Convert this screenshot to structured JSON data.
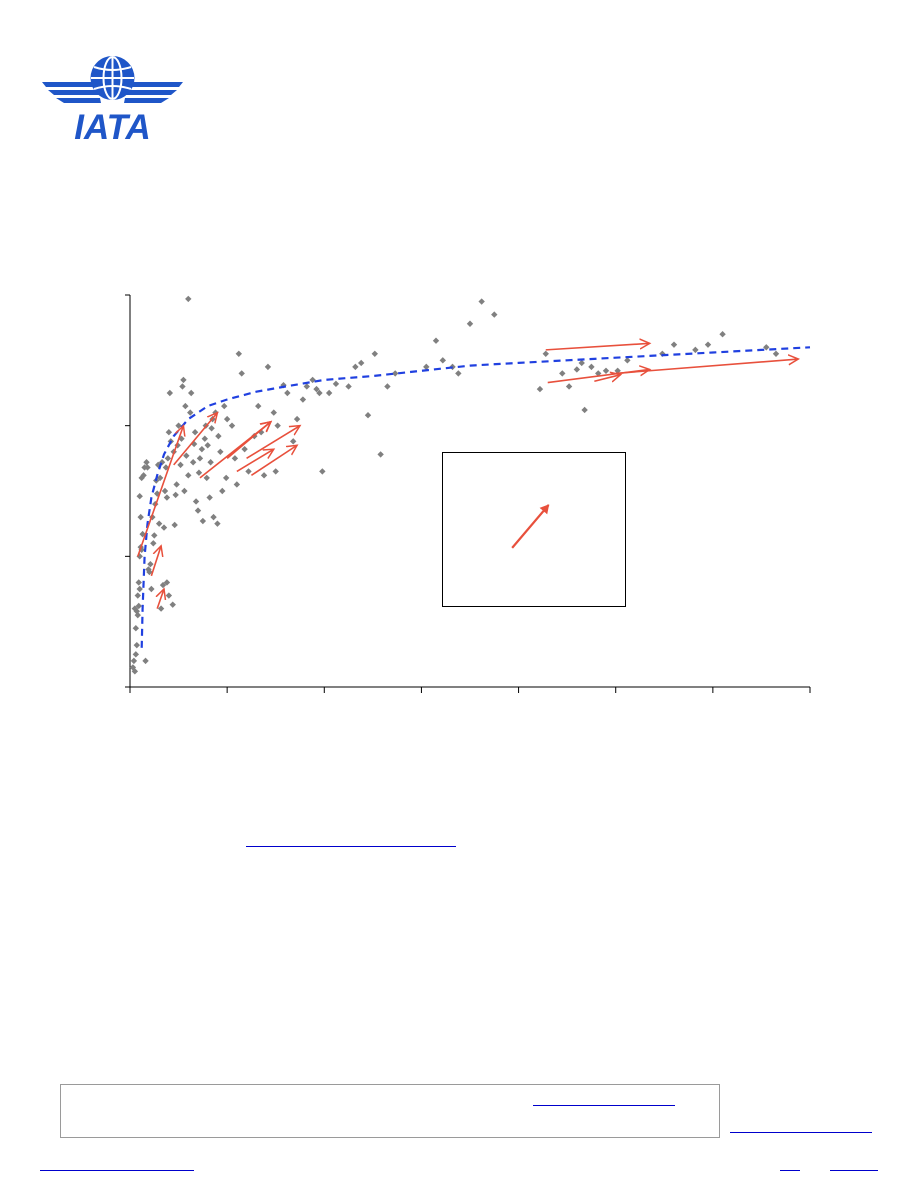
{
  "brand": {
    "logo_text": "IATA",
    "logo_color": "#1f56c8"
  },
  "colors": {
    "scatter": "#808080",
    "trend": "#2040e0",
    "arrow": "#e8503c",
    "axis": "#000000",
    "link": "#0000cc"
  },
  "chart_data": {
    "type": "scatter",
    "title": "",
    "xlabel": "",
    "ylabel": "",
    "xlim": [
      0,
      7
    ],
    "ylim": [
      0,
      3
    ],
    "grid": false,
    "legend": "none",
    "x_ticks": [
      0,
      1,
      2,
      3,
      4,
      5,
      6,
      7
    ],
    "y_ticks": [
      0,
      1,
      2,
      3
    ],
    "series": [
      {
        "kind": "points",
        "points": [
          [
            0.03,
            0.15
          ],
          [
            0.04,
            0.2
          ],
          [
            0.05,
            0.12
          ],
          [
            0.06,
            0.25
          ],
          [
            0.07,
            0.32
          ],
          [
            0.06,
            0.45
          ],
          [
            0.08,
            0.55
          ],
          [
            0.05,
            0.6
          ],
          [
            0.07,
            0.58
          ],
          [
            0.09,
            0.62
          ],
          [
            0.08,
            0.7
          ],
          [
            0.1,
            0.75
          ],
          [
            0.09,
            0.8
          ],
          [
            0.1,
            1.0
          ],
          [
            0.11,
            1.07
          ],
          [
            0.12,
            1.05
          ],
          [
            0.13,
            1.17
          ],
          [
            0.11,
            1.3
          ],
          [
            0.1,
            1.46
          ],
          [
            0.12,
            1.6
          ],
          [
            0.14,
            1.62
          ],
          [
            0.15,
            1.68
          ],
          [
            0.17,
            1.72
          ],
          [
            0.18,
            1.68
          ],
          [
            0.16,
            0.2
          ],
          [
            0.19,
            0.9
          ],
          [
            0.2,
            0.88
          ],
          [
            0.21,
            0.94
          ],
          [
            0.22,
            0.75
          ],
          [
            0.24,
            1.1
          ],
          [
            0.25,
            1.16
          ],
          [
            0.23,
            1.3
          ],
          [
            0.26,
            1.4
          ],
          [
            0.27,
            1.58
          ],
          [
            0.29,
            1.7
          ],
          [
            0.28,
            1.48
          ],
          [
            0.3,
            1.25
          ],
          [
            0.31,
            1.6
          ],
          [
            0.33,
            1.72
          ],
          [
            0.32,
            0.6
          ],
          [
            0.35,
            1.22
          ],
          [
            0.36,
            1.5
          ],
          [
            0.38,
            1.45
          ],
          [
            0.37,
            1.68
          ],
          [
            0.39,
            1.75
          ],
          [
            0.4,
            1.95
          ],
          [
            0.41,
            2.25
          ],
          [
            0.42,
            1.88
          ],
          [
            0.34,
            0.78
          ],
          [
            0.38,
            0.8
          ],
          [
            0.4,
            0.7
          ],
          [
            0.44,
            0.63
          ],
          [
            0.46,
            1.24
          ],
          [
            0.47,
            1.47
          ],
          [
            0.48,
            1.55
          ],
          [
            0.45,
            1.8
          ],
          [
            0.49,
            1.85
          ],
          [
            0.5,
            2.0
          ],
          [
            0.52,
            1.7
          ],
          [
            0.53,
            1.9
          ],
          [
            0.55,
            2.35
          ],
          [
            0.54,
            2.3
          ],
          [
            0.57,
            2.15
          ],
          [
            0.58,
            1.77
          ],
          [
            0.56,
            1.5
          ],
          [
            0.6,
            1.62
          ],
          [
            0.6,
            2.97
          ],
          [
            0.62,
            2.1
          ],
          [
            0.63,
            2.25
          ],
          [
            0.65,
            1.72
          ],
          [
            0.66,
            1.86
          ],
          [
            0.67,
            1.95
          ],
          [
            0.68,
            1.42
          ],
          [
            0.7,
            1.35
          ],
          [
            0.71,
            1.64
          ],
          [
            0.72,
            1.75
          ],
          [
            0.74,
            1.82
          ],
          [
            0.75,
            1.27
          ],
          [
            0.77,
            1.9
          ],
          [
            0.78,
            2.0
          ],
          [
            0.79,
            1.6
          ],
          [
            0.8,
            1.85
          ],
          [
            0.82,
            1.45
          ],
          [
            0.83,
            1.72
          ],
          [
            0.84,
            1.98
          ],
          [
            0.85,
            2.05
          ],
          [
            0.86,
            1.3
          ],
          [
            0.88,
            2.1
          ],
          [
            0.9,
            1.25
          ],
          [
            0.91,
            1.92
          ],
          [
            0.93,
            1.8
          ],
          [
            0.95,
            1.5
          ],
          [
            0.97,
            2.15
          ],
          [
            0.99,
            1.6
          ],
          [
            1.0,
            2.05
          ],
          [
            1.05,
            2.0
          ],
          [
            1.08,
            1.75
          ],
          [
            1.1,
            1.55
          ],
          [
            1.12,
            2.55
          ],
          [
            1.15,
            2.4
          ],
          [
            1.18,
            1.82
          ],
          [
            1.22,
            1.65
          ],
          [
            1.28,
            1.92
          ],
          [
            1.32,
            2.15
          ],
          [
            1.35,
            1.95
          ],
          [
            1.38,
            1.62
          ],
          [
            1.42,
            2.45
          ],
          [
            1.48,
            2.1
          ],
          [
            1.5,
            1.65
          ],
          [
            1.52,
            2.0
          ],
          [
            1.58,
            2.31
          ],
          [
            1.62,
            2.25
          ],
          [
            1.68,
            1.88
          ],
          [
            1.72,
            2.05
          ],
          [
            1.78,
            2.2
          ],
          [
            1.82,
            2.3
          ],
          [
            1.88,
            2.35
          ],
          [
            1.92,
            2.28
          ],
          [
            1.95,
            2.25
          ],
          [
            1.98,
            1.65
          ],
          [
            2.05,
            2.25
          ],
          [
            2.12,
            2.32
          ],
          [
            2.25,
            2.3
          ],
          [
            2.32,
            2.45
          ],
          [
            2.38,
            2.48
          ],
          [
            2.45,
            2.08
          ],
          [
            2.52,
            2.55
          ],
          [
            2.58,
            1.78
          ],
          [
            2.65,
            2.3
          ],
          [
            2.73,
            2.4
          ],
          [
            3.05,
            2.45
          ],
          [
            3.15,
            2.65
          ],
          [
            3.22,
            2.5
          ],
          [
            3.32,
            2.45
          ],
          [
            3.38,
            2.4
          ],
          [
            3.5,
            2.78
          ],
          [
            3.62,
            2.95
          ],
          [
            3.75,
            2.85
          ],
          [
            4.22,
            2.28
          ],
          [
            4.28,
            2.55
          ],
          [
            4.45,
            2.4
          ],
          [
            4.52,
            2.3
          ],
          [
            4.6,
            2.43
          ],
          [
            4.65,
            2.48
          ],
          [
            4.68,
            2.12
          ],
          [
            4.75,
            2.45
          ],
          [
            4.82,
            2.4
          ],
          [
            4.9,
            2.42
          ],
          [
            5.02,
            2.42
          ],
          [
            5.12,
            2.5
          ],
          [
            5.48,
            2.55
          ],
          [
            5.6,
            2.62
          ],
          [
            5.82,
            2.58
          ],
          [
            5.95,
            2.62
          ],
          [
            6.1,
            2.7
          ],
          [
            6.55,
            2.6
          ],
          [
            6.65,
            2.55
          ]
        ]
      },
      {
        "kind": "trend",
        "style": "dashed",
        "points": [
          [
            0.12,
            0.3
          ],
          [
            0.13,
            0.6
          ],
          [
            0.15,
            1.0
          ],
          [
            0.18,
            1.25
          ],
          [
            0.22,
            1.45
          ],
          [
            0.28,
            1.62
          ],
          [
            0.35,
            1.78
          ],
          [
            0.45,
            1.92
          ],
          [
            0.6,
            2.05
          ],
          [
            0.8,
            2.15
          ],
          [
            1.0,
            2.2
          ],
          [
            1.3,
            2.26
          ],
          [
            1.6,
            2.3
          ],
          [
            2.0,
            2.35
          ],
          [
            2.5,
            2.38
          ],
          [
            3.0,
            2.42
          ],
          [
            3.5,
            2.46
          ],
          [
            4.0,
            2.48
          ],
          [
            4.5,
            2.5
          ],
          [
            5.0,
            2.52
          ],
          [
            5.5,
            2.54
          ],
          [
            6.0,
            2.56
          ],
          [
            6.5,
            2.58
          ],
          [
            7.0,
            2.6
          ]
        ]
      },
      {
        "kind": "arrows",
        "arrows": [
          [
            0.22,
            0.85,
            0.32,
            1.08
          ],
          [
            0.28,
            0.6,
            0.35,
            0.75
          ],
          [
            0.08,
            1.0,
            0.55,
            2.0
          ],
          [
            0.45,
            1.7,
            0.9,
            2.1
          ],
          [
            0.72,
            1.6,
            1.45,
            2.03
          ],
          [
            1.0,
            1.75,
            1.45,
            2.03
          ],
          [
            1.2,
            1.75,
            1.75,
            2.0
          ],
          [
            1.25,
            1.62,
            1.72,
            1.85
          ],
          [
            1.1,
            1.65,
            1.48,
            1.82
          ],
          [
            4.28,
            2.58,
            5.35,
            2.63
          ],
          [
            4.3,
            2.33,
            5.35,
            2.43
          ],
          [
            4.78,
            2.34,
            5.05,
            2.39
          ],
          [
            5.0,
            2.4,
            6.88,
            2.51
          ]
        ]
      }
    ]
  },
  "inset": {
    "arrow": [
      0.38,
      0.62,
      0.58,
      0.34
    ]
  }
}
